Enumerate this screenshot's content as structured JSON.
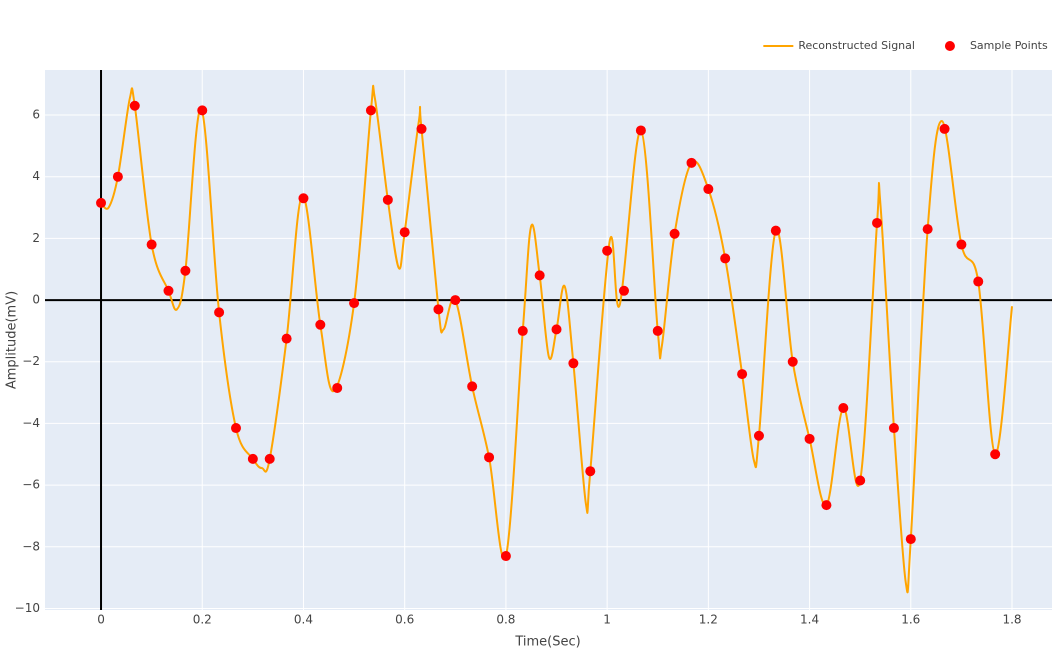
{
  "chart_data": {
    "type": "scatter",
    "x_label": "Time(Sec)",
    "y_label": "Amplitude(mV)",
    "xlim": [
      -0.1107,
      1.879
    ],
    "ylim": [
      -10.05,
      7.46
    ],
    "xticks": [
      0,
      0.2,
      0.4,
      0.6,
      0.8,
      1,
      1.2,
      1.4,
      1.6,
      1.8
    ],
    "yticks": [
      {
        "value": -10,
        "label": "−10"
      },
      {
        "value": -8,
        "label": "−8"
      },
      {
        "value": -6,
        "label": "−6"
      },
      {
        "value": -4,
        "label": "−4"
      },
      {
        "value": -2,
        "label": "−2"
      },
      0,
      2,
      4,
      6
    ],
    "grid": true,
    "zero_lines": true,
    "legend": "top-right",
    "background": "#e5ecf6",
    "series": [
      {
        "name": "Reconstructed Signal",
        "mode": "lines",
        "color": "#ffa500",
        "x": [
          0,
          0.015,
          0.0333,
          0.057,
          0.0667,
          0.1,
          0.1333,
          0.15,
          0.1667,
          0.198,
          0.2333,
          0.2667,
          0.3,
          0.318,
          0.3333,
          0.3667,
          0.398,
          0.4333,
          0.46,
          0.5,
          0.5333,
          0.541,
          0.5667,
          0.588,
          0.6,
          0.628,
          0.6333,
          0.6667,
          0.677,
          0.7,
          0.7333,
          0.7667,
          0.8,
          0.8333,
          0.85,
          0.8667,
          0.885,
          0.9,
          0.916,
          0.9333,
          0.958,
          0.9667,
          1.005,
          1.025,
          1.0667,
          1.1,
          1.108,
          1.1333,
          1.1667,
          1.2,
          1.2333,
          1.2667,
          1.29,
          1.3,
          1.3333,
          1.3667,
          1.4,
          1.4333,
          1.4667,
          1.5,
          1.5333,
          1.54,
          1.5667,
          1.59,
          1.6,
          1.6333,
          1.662,
          1.7,
          1.7333,
          1.7667,
          1.8
        ],
        "values": [
          3.15,
          3.0,
          4.0,
          6.55,
          6.3,
          1.8,
          0.3,
          -0.3,
          0.95,
          6.2,
          -0.4,
          -4.15,
          -5.15,
          -5.45,
          -5.15,
          -1.25,
          3.4,
          -0.8,
          -2.95,
          -0.1,
          6.15,
          6.55,
          3.25,
          1.05,
          2.2,
          5.8,
          5.55,
          -0.3,
          -0.95,
          0,
          -2.8,
          -5.1,
          -8.3,
          -1.0,
          2.4,
          0.8,
          -1.85,
          -0.95,
          0.45,
          -2.05,
          -6.6,
          -5.55,
          1.9,
          -0.15,
          5.5,
          -1.0,
          -1.5,
          2.15,
          4.45,
          3.6,
          1.35,
          -2.4,
          -5.2,
          -4.4,
          2.25,
          -2.0,
          -4.5,
          -6.65,
          -3.5,
          -5.85,
          2.5,
          3.1,
          -4.15,
          -9.15,
          -7.75,
          2.3,
          5.8,
          1.8,
          0.6,
          -5.0,
          -0.2
        ]
      },
      {
        "name": "Sample Points",
        "mode": "markers",
        "color": "#ff0000",
        "x": [
          0,
          0.0333,
          0.0667,
          0.1,
          0.1333,
          0.1667,
          0.2,
          0.2333,
          0.2667,
          0.3,
          0.3333,
          0.3667,
          0.4,
          0.4333,
          0.4667,
          0.5,
          0.5333,
          0.5667,
          0.6,
          0.6333,
          0.6667,
          0.7,
          0.7333,
          0.7667,
          0.8,
          0.8333,
          0.8667,
          0.9,
          0.9333,
          0.9667,
          1,
          1.0333,
          1.0667,
          1.1,
          1.1333,
          1.1667,
          1.2,
          1.2333,
          1.2667,
          1.3,
          1.3333,
          1.3667,
          1.4,
          1.4333,
          1.4667,
          1.5,
          1.5333,
          1.5667,
          1.6,
          1.6333,
          1.6667,
          1.7,
          1.7333,
          1.7667
        ],
        "values": [
          3.15,
          4.0,
          6.3,
          1.8,
          0.3,
          0.95,
          6.15,
          -0.4,
          -4.15,
          -5.15,
          -5.15,
          -1.25,
          3.3,
          -0.8,
          -2.85,
          -0.1,
          6.15,
          3.25,
          2.2,
          5.55,
          -0.3,
          0,
          -2.8,
          -5.1,
          -8.3,
          -1.0,
          0.8,
          -0.95,
          -2.05,
          -5.55,
          1.6,
          0.3,
          5.5,
          -1.0,
          2.15,
          4.45,
          3.6,
          1.35,
          -2.4,
          -4.4,
          2.25,
          -2.0,
          -4.5,
          -6.65,
          -3.5,
          -5.85,
          2.5,
          -4.15,
          -7.75,
          2.3,
          5.55,
          1.8,
          0.6,
          -5.0
        ]
      }
    ]
  }
}
